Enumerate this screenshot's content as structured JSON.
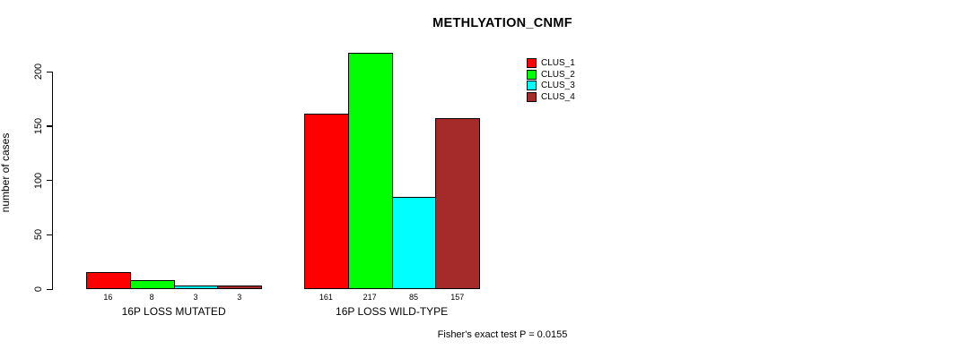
{
  "title": "METHLYATION_CNMF",
  "footer": "Fisher's exact test P = 0.0155",
  "legend": {
    "items": [
      {
        "label": "CLUS_1",
        "color": "#FF0000"
      },
      {
        "label": "CLUS_2",
        "color": "#00FF00"
      },
      {
        "label": "CLUS_3",
        "color": "#00FFFF"
      },
      {
        "label": "CLUS_4",
        "color": "#A52A2A"
      }
    ]
  },
  "chart_data": {
    "type": "bar",
    "categories": [
      "16P LOSS MUTATED",
      "16P LOSS WILD-TYPE"
    ],
    "series": [
      {
        "name": "CLUS_1",
        "color": "#FF0000",
        "values": [
          16,
          161
        ]
      },
      {
        "name": "CLUS_2",
        "color": "#00FF00",
        "values": [
          8,
          217
        ]
      },
      {
        "name": "CLUS_3",
        "color": "#00FFFF",
        "values": [
          3,
          85
        ]
      },
      {
        "name": "CLUS_4",
        "color": "#A52A2A",
        "values": [
          3,
          157
        ]
      }
    ],
    "title": "METHLYATION_CNMF",
    "xlabel": "",
    "ylabel": "number of cases",
    "yticks": [
      0,
      50,
      100,
      150,
      200
    ],
    "ylim": [
      0,
      220
    ],
    "bar_value_labels": [
      [
        16,
        8,
        3,
        3
      ],
      [
        161,
        217,
        85,
        157
      ]
    ],
    "legend_position": "top-right",
    "grid": false,
    "annotation": "Fisher's exact test P = 0.0155"
  }
}
